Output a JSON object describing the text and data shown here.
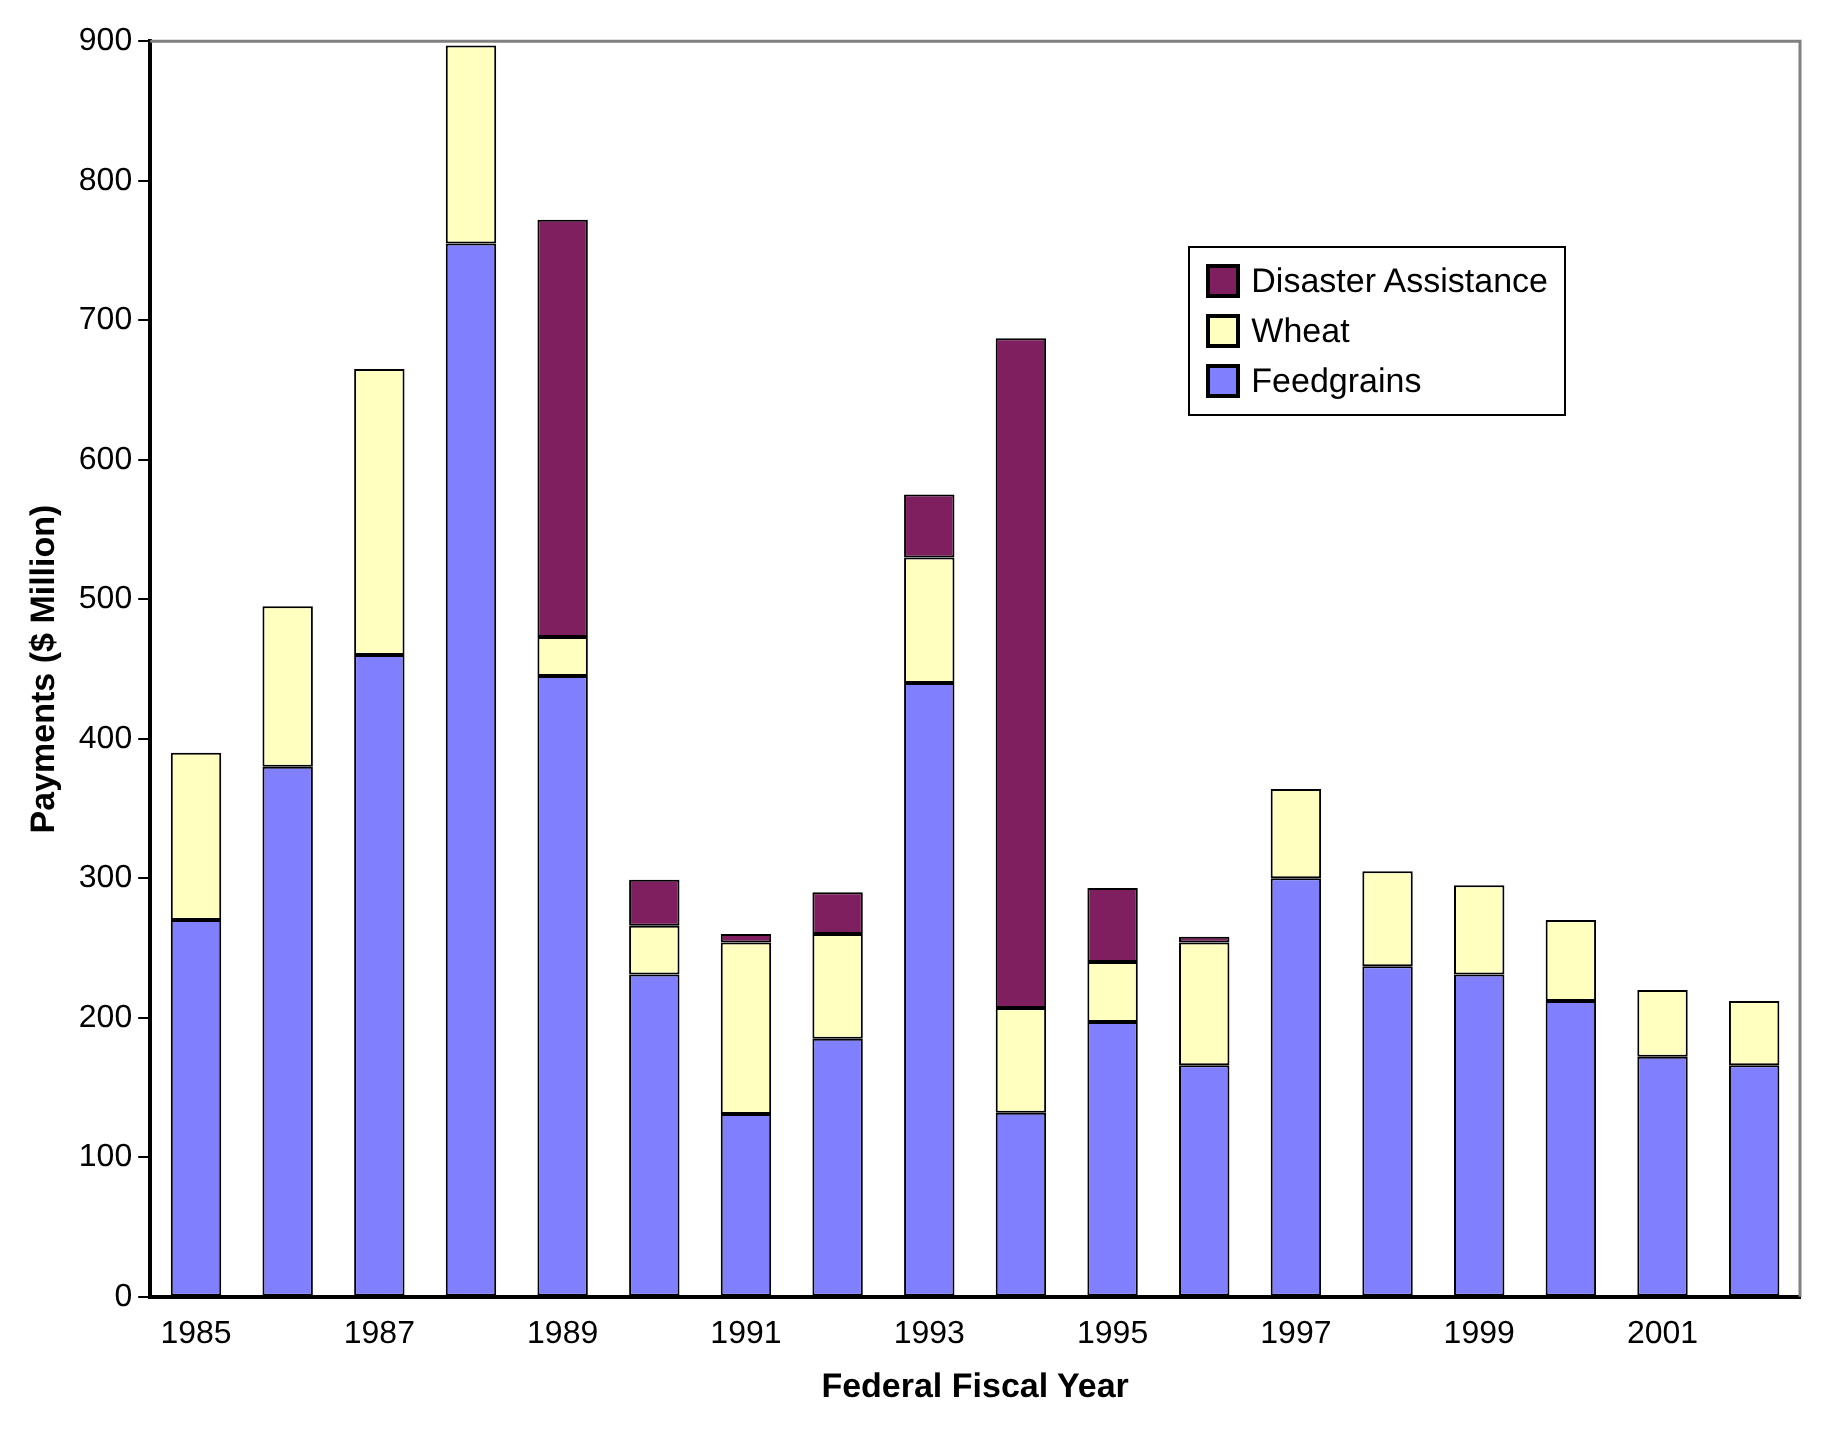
{
  "chart_data": {
    "type": "bar",
    "stacked": true,
    "xlabel": "Federal Fiscal Year",
    "ylabel": "Payments ($ Million)",
    "categories": [
      "1985",
      null,
      "1987",
      null,
      "1989",
      null,
      "1991",
      null,
      "1993",
      null,
      "1995",
      null,
      "1997",
      null,
      "1999",
      null,
      "2001",
      null
    ],
    "series": [
      {
        "name": "Feedgrains",
        "color": "#8080ff",
        "values": [
          270,
          380,
          460,
          755,
          445,
          231,
          131,
          185,
          440,
          132,
          197,
          166,
          300,
          237,
          231,
          212,
          172,
          166
        ]
      },
      {
        "name": "Wheat",
        "color": "#ffffc0",
        "values": [
          120,
          115,
          205,
          142,
          28,
          35,
          123,
          75,
          90,
          75,
          43,
          88,
          64,
          68,
          64,
          58,
          48,
          46
        ]
      },
      {
        "name": "Disaster Assistance",
        "color": "#7f1f5f",
        "values": [
          null,
          null,
          null,
          null,
          299,
          33,
          6,
          30,
          45,
          480,
          53,
          4,
          null,
          null,
          null,
          null,
          null,
          null
        ]
      }
    ],
    "ylim": [
      0,
      900
    ],
    "yticks": [
      0,
      100,
      200,
      300,
      400,
      500,
      600,
      700,
      800,
      900
    ],
    "grid": false,
    "legend": "top right"
  }
}
